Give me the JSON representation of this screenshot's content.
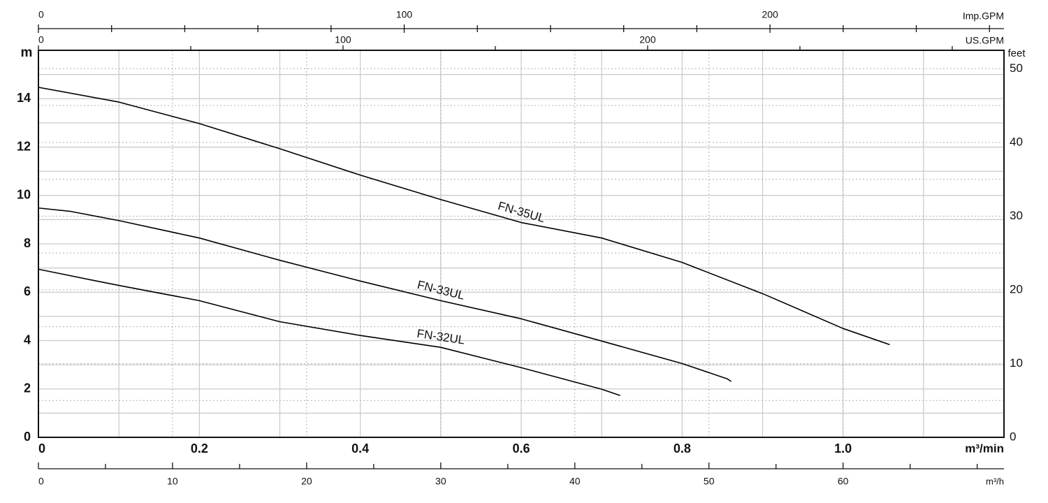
{
  "chart_data": {
    "type": "line",
    "x_label": "m³/min",
    "y_label": "m",
    "y2_label": "feet",
    "xlim": [
      0,
      1.2
    ],
    "xticks": [
      0,
      0.2,
      0.4,
      0.6,
      0.8,
      {
        "value": 1,
        "label": "1.0"
      }
    ],
    "x_minor_ticks": [
      0.1,
      0.3,
      0.5,
      0.7,
      0.9,
      1.1
    ],
    "ylim": [
      0,
      16
    ],
    "yticks": [
      0,
      2,
      4,
      6,
      8,
      10,
      12,
      14
    ],
    "y_minor_ticks": [
      1,
      3,
      5,
      7,
      9,
      11,
      13,
      15
    ],
    "y2lim": [
      0,
      52.49
    ],
    "y2ticks": [
      0,
      10,
      20,
      30,
      40,
      50
    ],
    "y2_minor_ticks": [
      5,
      15,
      25,
      35,
      45
    ],
    "grid": true,
    "top_axes": [
      {
        "label": "Imp.GPM",
        "lim": [
          0,
          263.97
        ],
        "ticks": [
          0,
          100,
          200
        ],
        "minor_ticks": [
          20,
          40,
          60,
          80,
          120,
          140,
          160,
          180,
          220,
          240,
          260
        ]
      },
      {
        "label": "US.GPM",
        "lim": [
          0,
          316.99
        ],
        "ticks": [
          0,
          100,
          200
        ],
        "minor_ticks": [
          50,
          150,
          250,
          300
        ]
      }
    ],
    "bottom_axis": {
      "label": "m³/h",
      "lim": [
        0,
        72
      ],
      "ticks": [
        0,
        10,
        20,
        30,
        40,
        50,
        60
      ],
      "minor_ticks": [
        5,
        15,
        25,
        35,
        45,
        55,
        65,
        70
      ]
    },
    "series": [
      {
        "name": "FN-35UL",
        "color": "#000000",
        "x": [
          0,
          0.1,
          0.2,
          0.3,
          0.4,
          0.5,
          0.6,
          0.7,
          0.8,
          0.9,
          1.0,
          1.058
        ],
        "values": [
          14.47,
          13.86,
          12.97,
          11.93,
          10.84,
          9.83,
          8.88,
          8.24,
          7.23,
          5.94,
          4.5,
          3.83
        ]
      },
      {
        "name": "FN-33UL",
        "color": "#000000",
        "x": [
          0,
          0.04,
          0.1,
          0.2,
          0.3,
          0.4,
          0.5,
          0.6,
          0.7,
          0.8,
          0.856,
          0.861
        ],
        "values": [
          9.48,
          9.34,
          8.96,
          8.24,
          7.32,
          6.46,
          5.65,
          4.9,
          3.98,
          3.05,
          2.42,
          2.31
        ]
      },
      {
        "name": "FN-32UL",
        "color": "#000000",
        "x": [
          0,
          0.065,
          0.1,
          0.2,
          0.3,
          0.4,
          0.5,
          0.6,
          0.7,
          0.723
        ],
        "values": [
          6.95,
          6.51,
          6.28,
          5.65,
          4.78,
          4.21,
          3.72,
          2.88,
          1.99,
          1.73
        ]
      }
    ]
  }
}
